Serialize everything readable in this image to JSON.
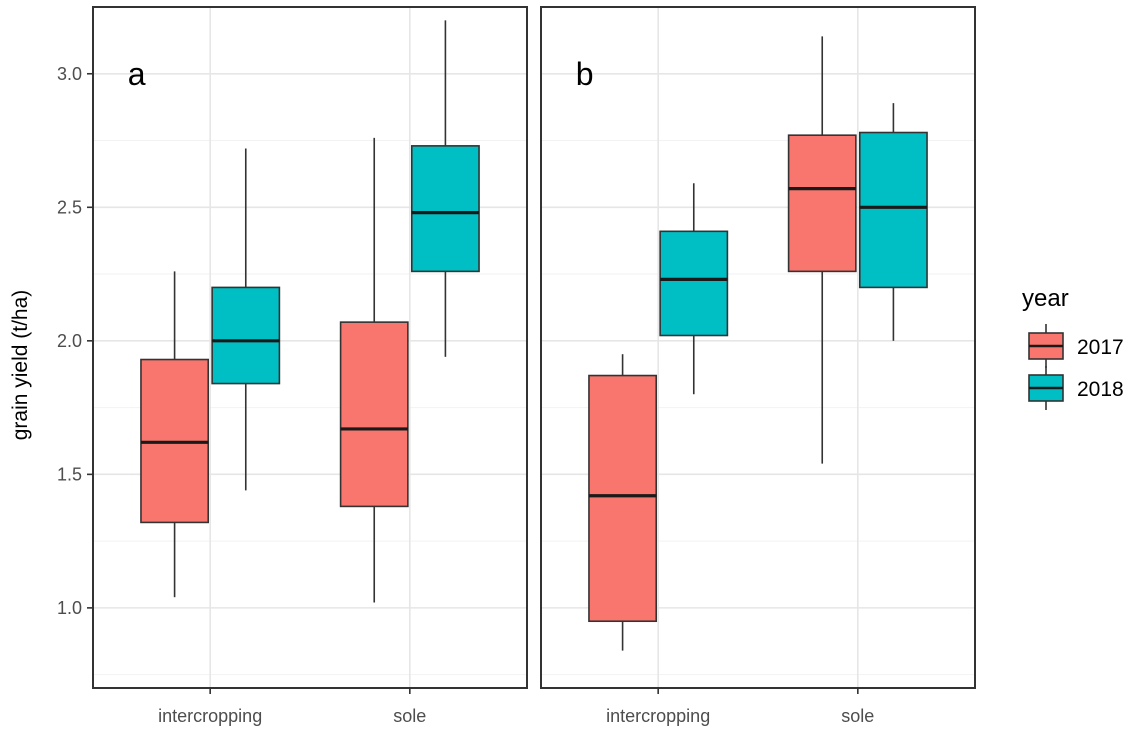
{
  "chart_data": {
    "type": "boxplot",
    "ylabel": "grain yield (t/ha)",
    "ylim": [
      0.7,
      3.25
    ],
    "yticks": [
      1.0,
      1.5,
      2.0,
      2.5,
      3.0
    ],
    "ytick_labels": [
      "1.0",
      "1.5",
      "2.0",
      "2.5",
      "3.0"
    ],
    "categories": [
      "intercropping",
      "sole"
    ],
    "colors": {
      "2017": "#f8766d",
      "2018": "#00bfc4"
    },
    "legend": {
      "title": "year",
      "position": "right",
      "entries": [
        "2017",
        "2018"
      ]
    },
    "grid": true,
    "panels": [
      {
        "label": "a",
        "boxes": [
          {
            "category": "intercropping",
            "year": "2017",
            "min": 1.04,
            "q1": 1.32,
            "median": 1.62,
            "q3": 1.93,
            "max": 2.26
          },
          {
            "category": "intercropping",
            "year": "2018",
            "min": 1.44,
            "q1": 1.84,
            "median": 2.0,
            "q3": 2.2,
            "max": 2.72
          },
          {
            "category": "sole",
            "year": "2017",
            "min": 1.02,
            "q1": 1.38,
            "median": 1.67,
            "q3": 2.07,
            "max": 2.76
          },
          {
            "category": "sole",
            "year": "2018",
            "min": 1.94,
            "q1": 2.26,
            "median": 2.48,
            "q3": 2.73,
            "max": 3.2
          }
        ]
      },
      {
        "label": "b",
        "boxes": [
          {
            "category": "intercropping",
            "year": "2017",
            "min": 0.84,
            "q1": 0.95,
            "median": 1.42,
            "q3": 1.87,
            "max": 1.95
          },
          {
            "category": "intercropping",
            "year": "2018",
            "min": 1.8,
            "q1": 2.02,
            "median": 2.23,
            "q3": 2.41,
            "max": 2.59
          },
          {
            "category": "sole",
            "year": "2017",
            "min": 1.54,
            "q1": 2.26,
            "median": 2.57,
            "q3": 2.77,
            "max": 3.14
          },
          {
            "category": "sole",
            "year": "2018",
            "min": 2.0,
            "q1": 2.2,
            "median": 2.5,
            "q3": 2.78,
            "max": 2.89
          }
        ]
      }
    ]
  }
}
